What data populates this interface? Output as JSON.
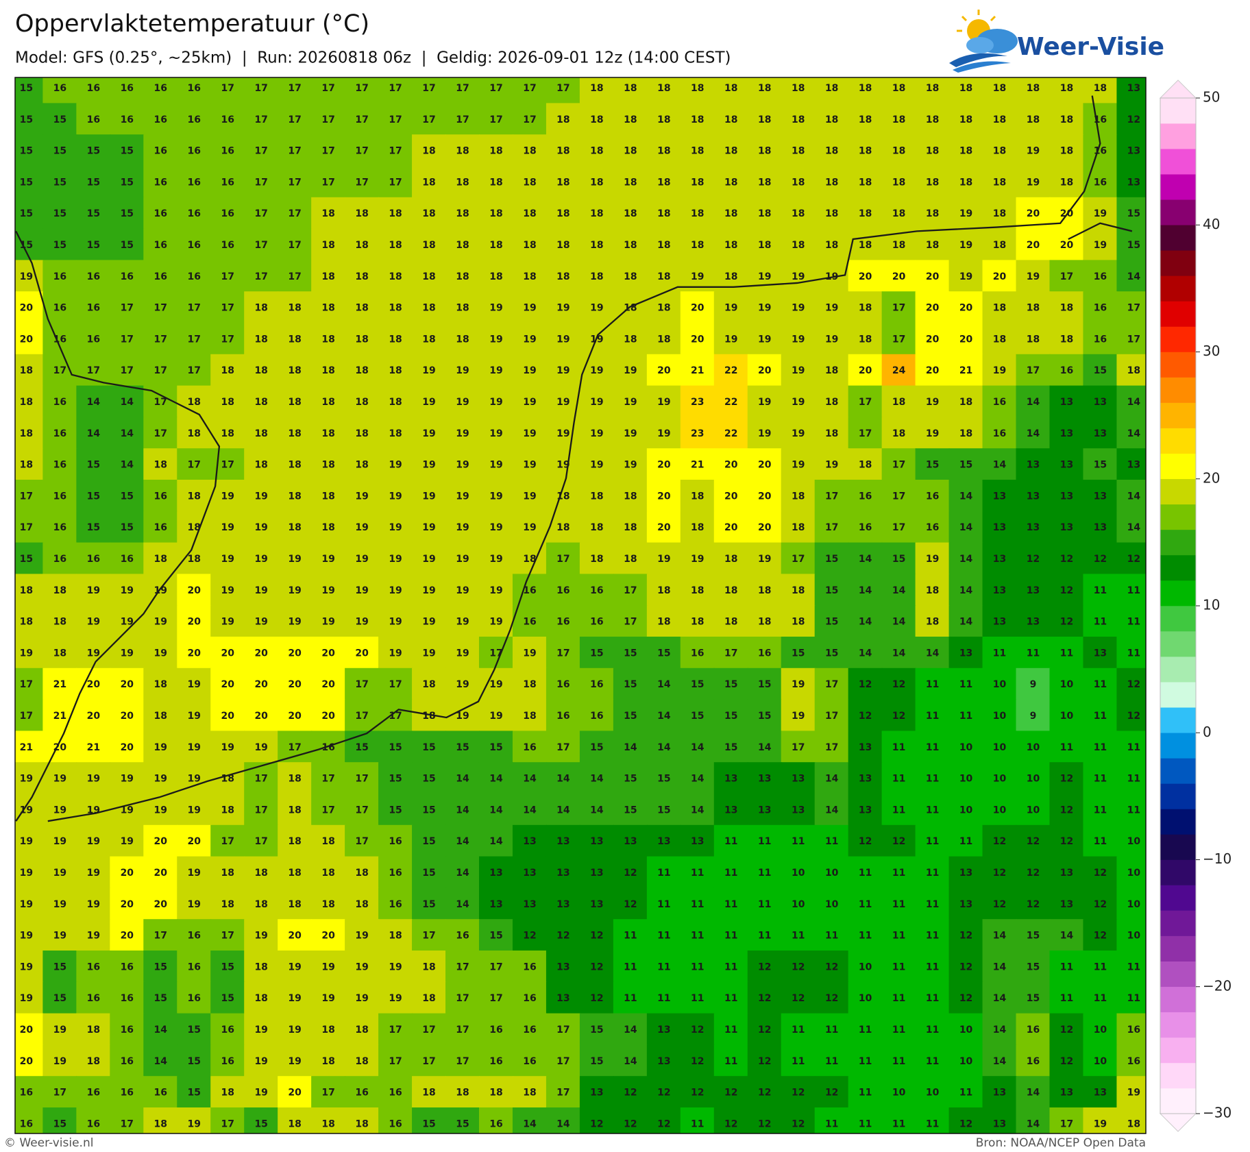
{
  "header": {
    "title": "Oppervlaktetemperatuur (°C)",
    "subtitle": "Model: GFS (0.25°, ~25km)  |  Run: 20260818 06z  |  Geldig: 2026-09-01 12z (14:00 CEST)",
    "logo": "Weer-Visie"
  },
  "grid": {
    "rows": [
      [
        15,
        16,
        16,
        16,
        16,
        16,
        17,
        17,
        17,
        17,
        17,
        17,
        17,
        17,
        17,
        17,
        17,
        18,
        18,
        18,
        18,
        18,
        18,
        18,
        18,
        18,
        18,
        18,
        18,
        18,
        18,
        18,
        18,
        13
      ],
      [
        15,
        15,
        16,
        16,
        16,
        16,
        16,
        17,
        17,
        17,
        17,
        17,
        17,
        17,
        17,
        17,
        18,
        18,
        18,
        18,
        18,
        18,
        18,
        18,
        18,
        18,
        18,
        18,
        18,
        18,
        18,
        18,
        16,
        12
      ],
      [
        15,
        15,
        15,
        15,
        16,
        16,
        16,
        17,
        17,
        17,
        17,
        17,
        18,
        18,
        18,
        18,
        18,
        18,
        18,
        18,
        18,
        18,
        18,
        18,
        18,
        18,
        18,
        18,
        18,
        18,
        19,
        18,
        16,
        13
      ],
      [
        15,
        15,
        15,
        15,
        16,
        16,
        16,
        17,
        17,
        17,
        17,
        17,
        18,
        18,
        18,
        18,
        18,
        18,
        18,
        18,
        18,
        18,
        18,
        18,
        18,
        18,
        18,
        18,
        18,
        18,
        19,
        18,
        16,
        13
      ],
      [
        15,
        15,
        15,
        15,
        16,
        16,
        16,
        17,
        17,
        18,
        18,
        18,
        18,
        18,
        18,
        18,
        18,
        18,
        18,
        18,
        18,
        18,
        18,
        18,
        18,
        18,
        18,
        18,
        19,
        18,
        20,
        20,
        19,
        15
      ],
      [
        15,
        15,
        15,
        15,
        16,
        16,
        16,
        17,
        17,
        18,
        18,
        18,
        18,
        18,
        18,
        18,
        18,
        18,
        18,
        18,
        18,
        18,
        18,
        18,
        18,
        18,
        18,
        18,
        19,
        18,
        20,
        20,
        19,
        15
      ],
      [
        19,
        16,
        16,
        16,
        16,
        16,
        17,
        17,
        17,
        18,
        18,
        18,
        18,
        18,
        18,
        18,
        18,
        18,
        18,
        18,
        19,
        18,
        19,
        19,
        19,
        20,
        20,
        20,
        19,
        20,
        19,
        17,
        16,
        14
      ],
      [
        20,
        16,
        16,
        17,
        17,
        17,
        17,
        18,
        18,
        18,
        18,
        18,
        18,
        18,
        19,
        19,
        19,
        19,
        18,
        18,
        20,
        19,
        19,
        19,
        19,
        18,
        17,
        20,
        20,
        18,
        18,
        18,
        16,
        17
      ],
      [
        20,
        16,
        16,
        17,
        17,
        17,
        17,
        18,
        18,
        18,
        18,
        18,
        18,
        18,
        19,
        19,
        19,
        19,
        18,
        18,
        20,
        19,
        19,
        19,
        19,
        18,
        17,
        20,
        20,
        18,
        18,
        18,
        16,
        17
      ],
      [
        18,
        17,
        17,
        17,
        17,
        17,
        18,
        18,
        18,
        18,
        18,
        18,
        19,
        19,
        19,
        19,
        19,
        19,
        19,
        20,
        21,
        22,
        20,
        19,
        18,
        20,
        24,
        20,
        21,
        19,
        17,
        16,
        15,
        18
      ],
      [
        18,
        16,
        14,
        14,
        17,
        18,
        18,
        18,
        18,
        18,
        18,
        18,
        19,
        19,
        19,
        19,
        19,
        19,
        19,
        19,
        23,
        22,
        19,
        19,
        18,
        17,
        18,
        19,
        18,
        16,
        14,
        13,
        13,
        14
      ],
      [
        18,
        16,
        14,
        14,
        17,
        18,
        18,
        18,
        18,
        18,
        18,
        18,
        19,
        19,
        19,
        19,
        19,
        19,
        19,
        19,
        23,
        22,
        19,
        19,
        18,
        17,
        18,
        19,
        18,
        16,
        14,
        13,
        13,
        14
      ],
      [
        18,
        16,
        15,
        14,
        18,
        17,
        17,
        18,
        18,
        18,
        18,
        19,
        19,
        19,
        19,
        19,
        19,
        19,
        19,
        20,
        21,
        20,
        20,
        19,
        19,
        18,
        17,
        15,
        15,
        14,
        13,
        13,
        15,
        13
      ],
      [
        17,
        16,
        15,
        15,
        16,
        18,
        19,
        19,
        18,
        18,
        19,
        19,
        19,
        19,
        19,
        19,
        18,
        18,
        18,
        20,
        18,
        20,
        20,
        18,
        17,
        16,
        17,
        16,
        14,
        13,
        13,
        13,
        13,
        14
      ],
      [
        17,
        16,
        15,
        15,
        16,
        18,
        19,
        19,
        18,
        18,
        19,
        19,
        19,
        19,
        19,
        19,
        18,
        18,
        18,
        20,
        18,
        20,
        20,
        18,
        17,
        16,
        17,
        16,
        14,
        13,
        13,
        13,
        13,
        14
      ],
      [
        15,
        16,
        16,
        16,
        18,
        18,
        19,
        19,
        19,
        19,
        19,
        19,
        19,
        19,
        19,
        18,
        17,
        18,
        18,
        19,
        19,
        18,
        19,
        17,
        15,
        14,
        15,
        19,
        14,
        13,
        12,
        12,
        12,
        12
      ],
      [
        18,
        18,
        19,
        19,
        19,
        20,
        19,
        19,
        19,
        19,
        19,
        19,
        19,
        19,
        19,
        16,
        16,
        16,
        17,
        18,
        18,
        18,
        18,
        18,
        15,
        14,
        14,
        18,
        14,
        13,
        13,
        12,
        11,
        11
      ],
      [
        18,
        18,
        19,
        19,
        19,
        20,
        19,
        19,
        19,
        19,
        19,
        19,
        19,
        19,
        19,
        16,
        16,
        16,
        17,
        18,
        18,
        18,
        18,
        18,
        15,
        14,
        14,
        18,
        14,
        13,
        13,
        12,
        11,
        11
      ],
      [
        19,
        18,
        19,
        19,
        19,
        20,
        20,
        20,
        20,
        20,
        20,
        19,
        19,
        19,
        17,
        19,
        17,
        15,
        15,
        15,
        16,
        17,
        16,
        15,
        15,
        14,
        14,
        14,
        13,
        11,
        11,
        11,
        13,
        11
      ],
      [
        17,
        21,
        20,
        20,
        18,
        19,
        20,
        20,
        20,
        20,
        17,
        17,
        18,
        19,
        19,
        18,
        16,
        16,
        15,
        14,
        15,
        15,
        15,
        19,
        17,
        12,
        12,
        11,
        11,
        10,
        9,
        10,
        11,
        12
      ],
      [
        17,
        21,
        20,
        20,
        18,
        19,
        20,
        20,
        20,
        20,
        17,
        17,
        18,
        19,
        19,
        18,
        16,
        16,
        15,
        14,
        15,
        15,
        15,
        19,
        17,
        12,
        12,
        11,
        11,
        10,
        9,
        10,
        11,
        12
      ],
      [
        21,
        20,
        21,
        20,
        19,
        19,
        19,
        19,
        17,
        16,
        15,
        15,
        15,
        15,
        15,
        16,
        17,
        15,
        14,
        14,
        14,
        15,
        14,
        17,
        17,
        13,
        11,
        11,
        10,
        10,
        10,
        11,
        11,
        11
      ],
      [
        19,
        19,
        19,
        19,
        19,
        19,
        18,
        17,
        18,
        17,
        17,
        15,
        15,
        14,
        14,
        14,
        14,
        14,
        15,
        15,
        14,
        13,
        13,
        13,
        14,
        13,
        11,
        11,
        10,
        10,
        10,
        12,
        11,
        11
      ],
      [
        19,
        19,
        19,
        19,
        19,
        19,
        18,
        17,
        18,
        17,
        17,
        15,
        15,
        14,
        14,
        14,
        14,
        14,
        15,
        15,
        14,
        13,
        13,
        13,
        14,
        13,
        11,
        11,
        10,
        10,
        10,
        12,
        11,
        11
      ],
      [
        19,
        19,
        19,
        19,
        20,
        20,
        17,
        17,
        18,
        18,
        17,
        16,
        15,
        14,
        14,
        13,
        13,
        13,
        13,
        13,
        13,
        11,
        11,
        11,
        11,
        12,
        12,
        11,
        11,
        12,
        12,
        12,
        11,
        10
      ],
      [
        19,
        19,
        19,
        20,
        20,
        19,
        18,
        18,
        18,
        18,
        18,
        16,
        15,
        14,
        13,
        13,
        13,
        13,
        12,
        11,
        11,
        11,
        11,
        10,
        10,
        11,
        11,
        11,
        13,
        12,
        12,
        13,
        12,
        10
      ],
      [
        19,
        19,
        19,
        20,
        20,
        19,
        18,
        18,
        18,
        18,
        18,
        16,
        15,
        14,
        13,
        13,
        13,
        13,
        12,
        11,
        11,
        11,
        11,
        10,
        10,
        11,
        11,
        11,
        13,
        12,
        12,
        13,
        12,
        10
      ],
      [
        19,
        19,
        19,
        20,
        17,
        16,
        17,
        19,
        20,
        20,
        19,
        18,
        17,
        16,
        15,
        12,
        12,
        12,
        11,
        11,
        11,
        11,
        11,
        11,
        11,
        11,
        11,
        11,
        12,
        14,
        15,
        14,
        12,
        10
      ],
      [
        19,
        15,
        16,
        16,
        15,
        16,
        15,
        18,
        19,
        19,
        19,
        19,
        18,
        17,
        17,
        16,
        13,
        12,
        11,
        11,
        11,
        11,
        12,
        12,
        12,
        10,
        11,
        11,
        12,
        14,
        15,
        11,
        11,
        11
      ],
      [
        19,
        15,
        16,
        16,
        15,
        16,
        15,
        18,
        19,
        19,
        19,
        19,
        18,
        17,
        17,
        16,
        13,
        12,
        11,
        11,
        11,
        11,
        12,
        12,
        12,
        10,
        11,
        11,
        12,
        14,
        15,
        11,
        11,
        11
      ],
      [
        20,
        19,
        18,
        16,
        14,
        15,
        16,
        19,
        19,
        18,
        18,
        17,
        17,
        17,
        16,
        16,
        17,
        15,
        14,
        13,
        12,
        11,
        12,
        11,
        11,
        11,
        11,
        11,
        10,
        14,
        16,
        12,
        10,
        16
      ],
      [
        20,
        19,
        18,
        16,
        14,
        15,
        16,
        19,
        19,
        18,
        18,
        17,
        17,
        17,
        16,
        16,
        17,
        15,
        14,
        13,
        12,
        11,
        12,
        11,
        11,
        11,
        11,
        11,
        10,
        14,
        16,
        12,
        10,
        16
      ],
      [
        16,
        17,
        16,
        16,
        16,
        15,
        18,
        19,
        20,
        17,
        16,
        16,
        18,
        18,
        18,
        18,
        17,
        13,
        12,
        12,
        12,
        12,
        12,
        12,
        12,
        11,
        10,
        10,
        11,
        13,
        14,
        13,
        13,
        19
      ],
      [
        16,
        15,
        16,
        17,
        18,
        19,
        17,
        15,
        18,
        18,
        18,
        16,
        15,
        15,
        16,
        14,
        14,
        12,
        12,
        12,
        11,
        12,
        12,
        12,
        11,
        11,
        11,
        11,
        12,
        13,
        14,
        17,
        19,
        18
      ]
    ]
  },
  "colorbar": {
    "range": [
      -30,
      50
    ],
    "ticks": [
      50,
      40,
      30,
      20,
      10,
      0,
      {
        "value": -10,
        "label": "−10"
      },
      {
        "value": -20,
        "label": "−20"
      },
      {
        "value": -30,
        "label": "−30"
      }
    ],
    "colors": [
      "#fff0fc",
      "#ffd8f8",
      "#f8b0f0",
      "#e890e8",
      "#d070d8",
      "#b050c0",
      "#9030a8",
      "#701898",
      "#500890",
      "#300868",
      "#180850",
      "#001070",
      "#0030a0",
      "#0058c0",
      "#0090e0",
      "#30c0f8",
      "#d0fbe0",
      "#a8ecb0",
      "#70d870",
      "#40c840",
      "#00b800",
      "#008c00",
      "#30a810",
      "#78c400",
      "#c8d800",
      "#ffff00",
      "#ffdc00",
      "#ffb400",
      "#ff8c00",
      "#ff5a00",
      "#ff2800",
      "#e00000",
      "#b00000",
      "#800010",
      "#500030",
      "#880070",
      "#c000b0",
      "#f050d8",
      "#ffa0e0",
      "#ffe0f5"
    ]
  },
  "footer": {
    "left": "© Weer-visie.nl",
    "right": "Bron: NOAA/NCEP Open Data"
  }
}
